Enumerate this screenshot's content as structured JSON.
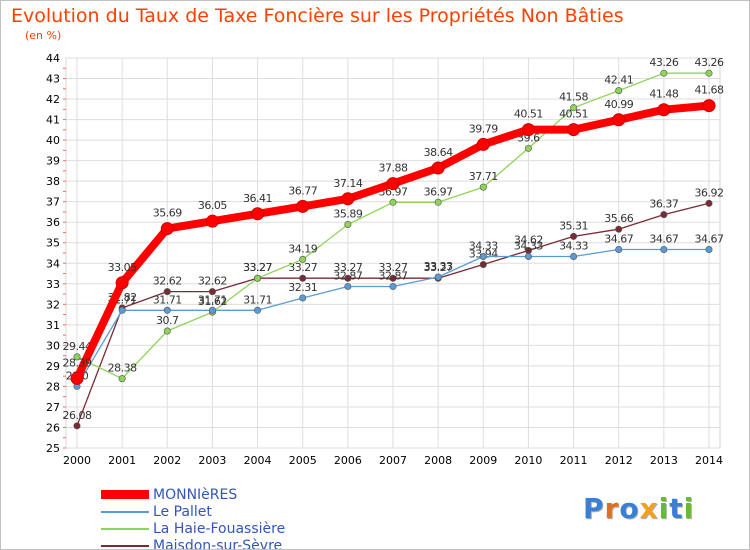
{
  "title": "Evolution du Taux de Taxe Foncière sur les Propriétés Non Bâties",
  "subtitle": "(en %)",
  "logo": "Proxiti",
  "chart_data": {
    "type": "line",
    "title": "Evolution du Taux de Taxe Foncière sur les Propriétés Non Bâties",
    "ylabel": "(en %)",
    "xlabel": "",
    "grid": true,
    "legend_position": "bottom-left",
    "ylim": [
      25,
      44
    ],
    "yticks": [
      25,
      26,
      27,
      28,
      29,
      30,
      31,
      32,
      33,
      34,
      35,
      36,
      37,
      38,
      39,
      40,
      41,
      42,
      43,
      44
    ],
    "categories": [
      "2000",
      "2001",
      "2002",
      "2003",
      "2004",
      "2005",
      "2006",
      "2007",
      "2008",
      "2009",
      "2010",
      "2011",
      "2012",
      "2013",
      "2014"
    ],
    "series": [
      {
        "name": "MONNIèRES",
        "color": "#ff0000",
        "values": [
          28.39,
          33.05,
          35.69,
          36.05,
          36.41,
          36.77,
          37.14,
          37.88,
          38.64,
          39.79,
          40.51,
          40.51,
          40.99,
          41.48,
          41.68
        ],
        "labels": [
          "28.39",
          "33.05",
          "35.69",
          "36.05",
          "36.41",
          "36.77",
          "37.14",
          "37.88",
          "38.64",
          "39.79",
          "40.51",
          "40.51",
          "40.99",
          "41.48",
          "41.68"
        ]
      },
      {
        "name": "Le Pallet",
        "color": "#5b9bd5",
        "values": [
          28.0,
          31.71,
          31.71,
          31.71,
          31.71,
          32.31,
          32.87,
          32.87,
          33.33,
          34.33,
          34.33,
          34.33,
          34.67,
          34.67,
          34.67
        ],
        "labels": [
          "28.0",
          "31.71",
          "31.71",
          "31.71",
          "31.71",
          "32.31",
          "32.87",
          "32.87",
          "33.33",
          "34.33",
          "34.33",
          "34.33",
          "34.67",
          "34.67",
          "34.67"
        ]
      },
      {
        "name": "La Haie-Fouassière",
        "color": "#8fd45a",
        "values": [
          29.44,
          28.38,
          30.7,
          31.62,
          33.27,
          34.19,
          35.89,
          36.97,
          36.97,
          37.71,
          39.6,
          41.58,
          42.41,
          43.26,
          43.26
        ],
        "labels": [
          "29.44",
          "28.38",
          "30.7",
          "31.62",
          "33.27",
          "34.19",
          "35.89",
          "36.97",
          "36.97",
          "37.71",
          "39.6",
          "41.58",
          "42.41",
          "43.26",
          "43.26"
        ]
      },
      {
        "name": "Maisdon-sur-Sèvre",
        "color": "#7a2a33",
        "values": [
          26.08,
          31.82,
          32.62,
          32.62,
          33.27,
          33.27,
          33.27,
          33.27,
          33.27,
          33.94,
          34.62,
          35.31,
          35.66,
          36.37,
          36.92
        ],
        "labels": [
          "26.08",
          "31.82",
          "32.62",
          "32.62",
          "33.27",
          "33.27",
          "33.27",
          "33.27",
          "33.27",
          "33.94",
          "34.62",
          "35.31",
          "35.66",
          "36.37",
          "36.92"
        ]
      }
    ]
  }
}
